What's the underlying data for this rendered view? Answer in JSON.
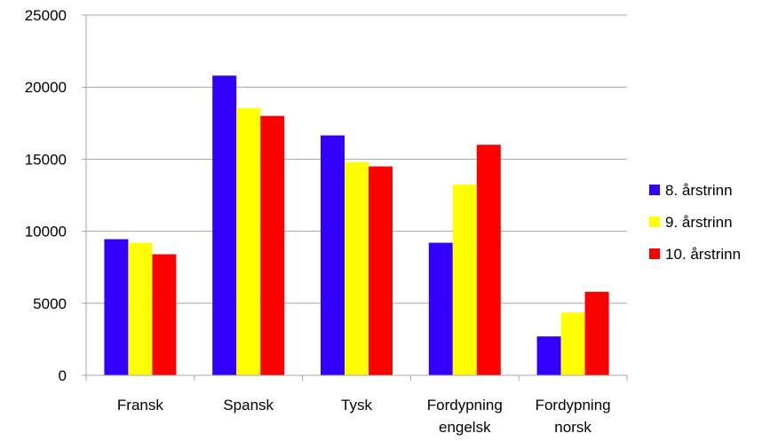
{
  "chart_data": {
    "type": "bar",
    "categories": [
      [
        "Fransk"
      ],
      [
        "Spansk"
      ],
      [
        "Tysk"
      ],
      [
        "Fordypning",
        "engelsk"
      ],
      [
        "Fordypning",
        "norsk"
      ]
    ],
    "series": [
      {
        "name": "8. årstrinn",
        "color": "#3300FF",
        "values": [
          9450,
          20800,
          16650,
          9200,
          2700
        ]
      },
      {
        "name": "9. årstrinn",
        "color": "#FFFF00",
        "values": [
          9200,
          18550,
          14800,
          13250,
          4350
        ]
      },
      {
        "name": "10. årstrinn",
        "color": "#FF0000",
        "values": [
          8400,
          18000,
          14500,
          16000,
          5800
        ]
      }
    ],
    "yticks": [
      "0",
      "5000",
      "10000",
      "15000",
      "20000",
      "25000"
    ],
    "ylim": [
      0,
      25000
    ],
    "grid": true,
    "legend_position": "right"
  }
}
